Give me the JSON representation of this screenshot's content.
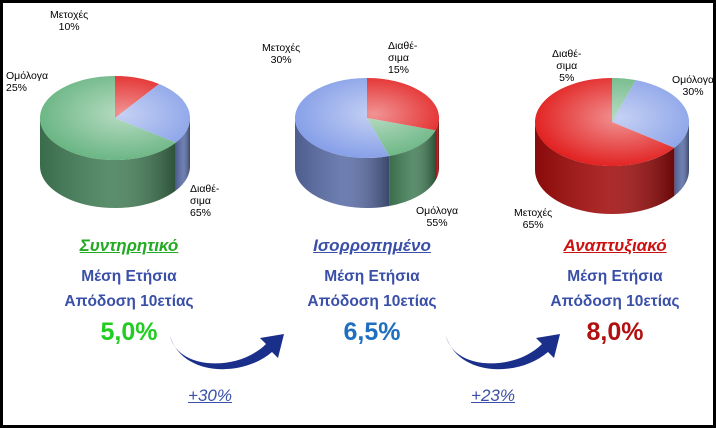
{
  "chart_data": [
    {
      "type": "pie",
      "name": "Συντηρητικό",
      "slices": [
        {
          "label_lines": [
            "Μετοχές",
            "10%"
          ],
          "value": 10,
          "color": "#e01010"
        },
        {
          "label_lines": [
            "Ομόλογα",
            "25%"
          ],
          "value": 25,
          "color": "#7d98e6"
        },
        {
          "label_lines": [
            "Διαθέ-",
            "σιμα",
            "65%"
          ],
          "value": 65,
          "color": "#5fb07a"
        }
      ],
      "return_lines": [
        "Μέση Ετήσια",
        "Απόδοση 10ετίας"
      ],
      "return_value": "5,0%",
      "name_color": "#22aa22",
      "return_color": "#22cc22"
    },
    {
      "type": "pie",
      "name": "Ισορροπημένο",
      "slices": [
        {
          "label_lines": [
            "Μετοχές",
            "30%"
          ],
          "value": 30,
          "color": "#e01010"
        },
        {
          "label_lines": [
            "Διαθέ-",
            "σιμα",
            "15%"
          ],
          "value": 15,
          "color": "#5fb07a"
        },
        {
          "label_lines": [
            "Ομόλογα",
            "55%"
          ],
          "value": 55,
          "color": "#7d98e6"
        }
      ],
      "return_lines": [
        "Μέση Ετήσια",
        "Απόδοση 10ετίας"
      ],
      "return_value": "6,5%",
      "name_color": "#3a4fa8",
      "return_color": "#1f6fc0"
    },
    {
      "type": "pie",
      "name": "Αναπτυξιακό",
      "slices": [
        {
          "label_lines": [
            "Διαθέ-",
            "σιμα",
            "5%"
          ],
          "value": 5,
          "color": "#5fb07a"
        },
        {
          "label_lines": [
            "Ομόλογα",
            "30%"
          ],
          "value": 30,
          "color": "#7d98e6"
        },
        {
          "label_lines": [
            "Μετοχές",
            "65%"
          ],
          "value": 65,
          "color": "#e01010"
        }
      ],
      "return_lines": [
        "Μέση Ετήσια",
        "Απόδοση 10ετίας"
      ],
      "return_value": "8,0%",
      "name_color": "#cc1111",
      "return_color": "#b01010"
    }
  ],
  "increases": [
    "+30%",
    "+23%"
  ],
  "arrow_color": "#1a2f8a"
}
